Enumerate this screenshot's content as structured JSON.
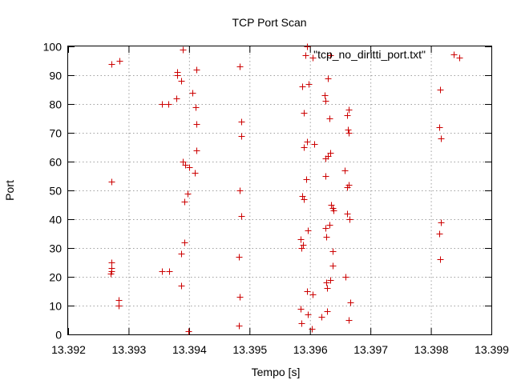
{
  "chart_data": {
    "type": "scatter",
    "title": "TCP Port Scan",
    "xlabel": "Tempo [s]",
    "ylabel": "Port",
    "xlim": [
      13.392,
      13.399
    ],
    "ylim": [
      0,
      100
    ],
    "x_ticks": [
      "13.392",
      "13.393",
      "13.394",
      "13.395",
      "13.396",
      "13.397",
      "13.398",
      "13.399"
    ],
    "y_ticks": [
      "0",
      "10",
      "20",
      "30",
      "40",
      "50",
      "60",
      "70",
      "80",
      "90",
      "100"
    ],
    "grid": true,
    "legend": "top-right",
    "series": [
      {
        "name": "\"tcp_no_diritti_port.txt\"",
        "color": "#cc0000",
        "marker": "plus",
        "points": [
          [
            13.39271,
            94
          ],
          [
            13.39285,
            95
          ],
          [
            13.39272,
            53
          ],
          [
            13.39272,
            25
          ],
          [
            13.39271,
            23
          ],
          [
            13.39271,
            22
          ],
          [
            13.3927,
            21
          ],
          [
            13.39284,
            12
          ],
          [
            13.39284,
            10
          ],
          [
            13.3938,
            91
          ],
          [
            13.3938,
            90
          ],
          [
            13.39387,
            88
          ],
          [
            13.39389,
            99
          ],
          [
            13.39412,
            92
          ],
          [
            13.39379,
            82
          ],
          [
            13.39366,
            80
          ],
          [
            13.39355,
            80
          ],
          [
            13.39405,
            84
          ],
          [
            13.39411,
            79
          ],
          [
            13.39412,
            73
          ],
          [
            13.39412,
            64
          ],
          [
            13.39389,
            60
          ],
          [
            13.39394,
            59
          ],
          [
            13.394,
            58
          ],
          [
            13.39409,
            56
          ],
          [
            13.39398,
            49
          ],
          [
            13.39392,
            46
          ],
          [
            13.39392,
            32
          ],
          [
            13.39387,
            28
          ],
          [
            13.39367,
            22
          ],
          [
            13.39355,
            22
          ],
          [
            13.39387,
            17
          ],
          [
            13.39399,
            1
          ],
          [
            13.39484,
            93
          ],
          [
            13.39487,
            74
          ],
          [
            13.39487,
            69
          ],
          [
            13.39484,
            50
          ],
          [
            13.39487,
            41
          ],
          [
            13.39482,
            27
          ],
          [
            13.39484,
            13
          ],
          [
            13.39482,
            3
          ],
          [
            13.39595,
            100
          ],
          [
            13.39593,
            97
          ],
          [
            13.39605,
            96
          ],
          [
            13.39587,
            86
          ],
          [
            13.39598,
            87
          ],
          [
            13.3963,
            89
          ],
          [
            13.3959,
            77
          ],
          [
            13.39595,
            67
          ],
          [
            13.39607,
            66
          ],
          [
            13.3959,
            65
          ],
          [
            13.3963,
            62
          ],
          [
            13.39634,
            63
          ],
          [
            13.39594,
            54
          ],
          [
            13.39587,
            48
          ],
          [
            13.3959,
            47
          ],
          [
            13.39625,
            55
          ],
          [
            13.39584,
            33
          ],
          [
            13.39588,
            31
          ],
          [
            13.39586,
            30
          ],
          [
            13.39596,
            36
          ],
          [
            13.39627,
            34
          ],
          [
            13.39632,
            38
          ],
          [
            13.39626,
            37
          ],
          [
            13.39637,
            44
          ],
          [
            13.39639,
            43
          ],
          [
            13.39635,
            45
          ],
          [
            13.39637,
            29
          ],
          [
            13.39637,
            24
          ],
          [
            13.39633,
            19
          ],
          [
            13.39627,
            18
          ],
          [
            13.39628,
            16
          ],
          [
            13.39595,
            15
          ],
          [
            13.39604,
            14
          ],
          [
            13.39585,
            9
          ],
          [
            13.39596,
            7
          ],
          [
            13.39586,
            4
          ],
          [
            13.39603,
            2
          ],
          [
            13.39625,
            81
          ],
          [
            13.39624,
            83
          ],
          [
            13.39632,
            75
          ],
          [
            13.39634,
            97
          ],
          [
            13.39626,
            61
          ],
          [
            13.39664,
            78
          ],
          [
            13.39661,
            76
          ],
          [
            13.39663,
            71
          ],
          [
            13.39664,
            70
          ],
          [
            13.39658,
            57
          ],
          [
            13.39664,
            52
          ],
          [
            13.39661,
            51
          ],
          [
            13.39662,
            42
          ],
          [
            13.39666,
            40
          ],
          [
            13.39659,
            20
          ],
          [
            13.39667,
            11
          ],
          [
            13.39628,
            8
          ],
          [
            13.39664,
            5
          ],
          [
            13.39619,
            6
          ],
          [
            13.39815,
            85
          ],
          [
            13.39814,
            72
          ],
          [
            13.39816,
            68
          ],
          [
            13.39817,
            39
          ],
          [
            13.39814,
            35
          ],
          [
            13.39815,
            26
          ],
          [
            13.39847,
            96
          ]
        ]
      }
    ]
  }
}
